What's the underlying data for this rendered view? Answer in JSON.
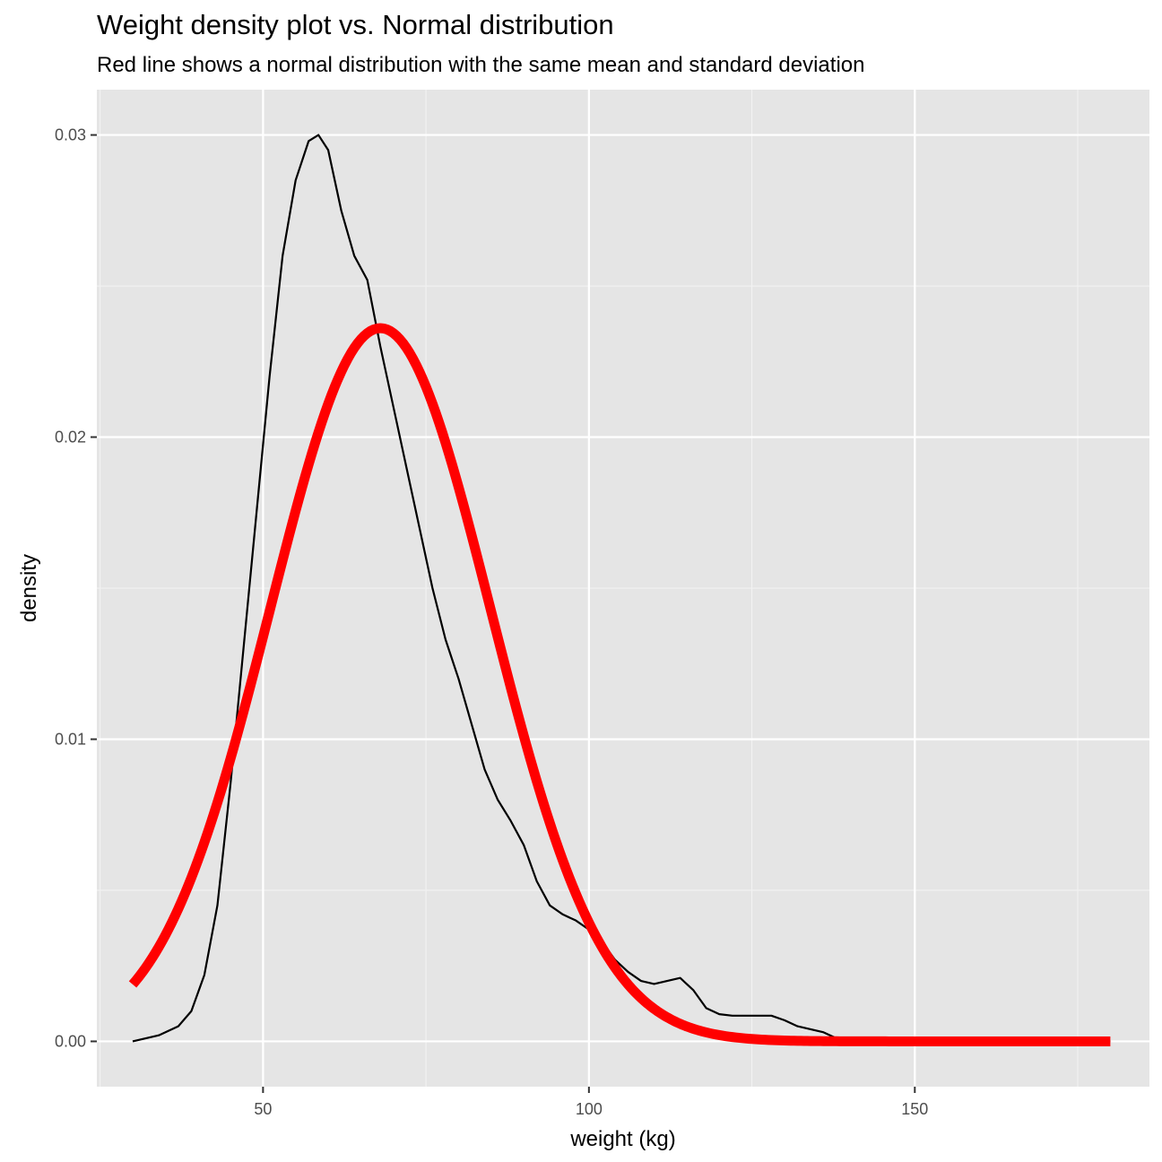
{
  "chart_data": {
    "type": "line",
    "title": "Weight density plot vs. Normal distribution",
    "subtitle": "Red line shows a normal distribution with the same mean and standard deviation",
    "xlabel": "weight (kg)",
    "ylabel": "density",
    "xlim": [
      24.5,
      186
    ],
    "ylim": [
      -0.0015,
      0.0315
    ],
    "x_ticks": [
      50,
      100,
      150
    ],
    "x_minor_ticks": [
      25,
      75,
      125,
      175
    ],
    "y_ticks": [
      0.0,
      0.01,
      0.02,
      0.03
    ],
    "y_tick_labels": [
      "0.00",
      "0.01",
      "0.02",
      "0.03"
    ],
    "y_minor_ticks": [
      0.005,
      0.015,
      0.025
    ],
    "grid": true,
    "panel_background": "#e5e5e5",
    "series": [
      {
        "color": "#000000",
        "style": "thin",
        "x": [
          30,
          34,
          37,
          39,
          41,
          43,
          45,
          47,
          49,
          51,
          53,
          55,
          57,
          58.5,
          60,
          62,
          64,
          66,
          68,
          70,
          72,
          74,
          76,
          78,
          80,
          82,
          84,
          86,
          88,
          90,
          92,
          94,
          96,
          98,
          100,
          102,
          104,
          106,
          108,
          110,
          112,
          114,
          116,
          118,
          120,
          122,
          125,
          128,
          130,
          132,
          134,
          136,
          138,
          140,
          145,
          150,
          160,
          170,
          180
        ],
        "y": [
          0.0,
          0.0002,
          0.0005,
          0.001,
          0.0022,
          0.0045,
          0.0085,
          0.013,
          0.0175,
          0.022,
          0.026,
          0.0285,
          0.0298,
          0.03,
          0.0295,
          0.0275,
          0.026,
          0.0252,
          0.023,
          0.021,
          0.019,
          0.017,
          0.015,
          0.0133,
          0.012,
          0.0105,
          0.009,
          0.008,
          0.0073,
          0.0065,
          0.0053,
          0.0045,
          0.0042,
          0.004,
          0.0037,
          0.0033,
          0.0027,
          0.0023,
          0.002,
          0.0019,
          0.002,
          0.0021,
          0.0017,
          0.0011,
          0.0009,
          0.00085,
          0.00085,
          0.00085,
          0.0007,
          0.0005,
          0.0004,
          0.0003,
          0.0001,
          0.0,
          0.0,
          0.0,
          0.0,
          0.0,
          0.0
        ]
      },
      {
        "color": "#ff0000",
        "style": "thick",
        "distribution": "normal",
        "mean": 68,
        "sd": 16.9,
        "x_range": [
          30,
          180
        ]
      }
    ]
  }
}
